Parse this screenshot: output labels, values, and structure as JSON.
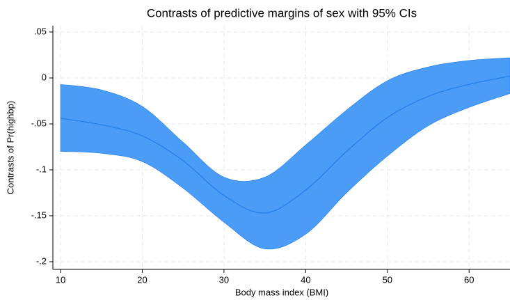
{
  "chart_data": {
    "type": "line-band",
    "title": "Contrasts of predictive margins of sex with 95% CIs",
    "x_label": "Body mass index (BMI)",
    "y_label": "Contrasts of Pr(highbp)",
    "x": [
      10,
      15,
      20,
      25,
      30,
      35,
      40,
      45,
      50,
      55,
      60,
      65
    ],
    "series": [
      {
        "color": "#1f7de6",
        "band_color": "#4b9cf7",
        "values": [
          -0.044,
          -0.051,
          -0.063,
          -0.09,
          -0.128,
          -0.147,
          -0.122,
          -0.08,
          -0.043,
          -0.02,
          -0.007,
          0.002
        ],
        "upper": [
          -0.007,
          -0.013,
          -0.031,
          -0.07,
          -0.108,
          -0.108,
          -0.073,
          -0.035,
          -0.003,
          0.012,
          0.019,
          0.022
        ],
        "lower": [
          -0.08,
          -0.082,
          -0.091,
          -0.12,
          -0.157,
          -0.186,
          -0.17,
          -0.125,
          -0.085,
          -0.052,
          -0.032,
          -0.017
        ]
      }
    ],
    "xlim": [
      10,
      65
    ],
    "ylim": [
      -0.2,
      0.05
    ],
    "xticks": [
      10,
      20,
      30,
      40,
      50,
      60
    ],
    "yticks": [
      {
        "value": 0.05,
        "label": ".05"
      },
      0,
      {
        "value": -0.05,
        "label": "-.05"
      },
      {
        "value": -0.1,
        "label": "-.1"
      },
      {
        "value": -0.15,
        "label": "-.15"
      },
      {
        "value": -0.2,
        "label": "-.2"
      }
    ],
    "grid": true
  }
}
